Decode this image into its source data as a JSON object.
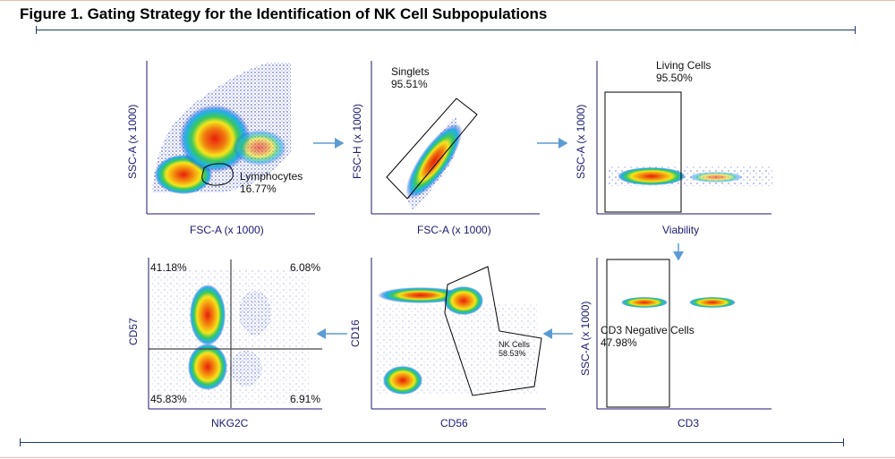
{
  "title": "Figure 1. Gating Strategy for the Identification of NK Cell Subpopulations",
  "panels": {
    "p1": {
      "xlabel": "FSC-A (x 1000)",
      "ylabel": "SSC-A (x 1000)",
      "gate_name": "Lymphocytes",
      "gate_pct": "16.77%"
    },
    "p2": {
      "xlabel": "FSC-A (x 1000)",
      "ylabel": "FSC-H (x 1000)",
      "gate_name": "Singlets",
      "gate_pct": "95.51%"
    },
    "p3": {
      "xlabel": "Viability",
      "ylabel": "SSC-A (x 1000)",
      "gate_name": "Living Cells",
      "gate_pct": "95.50%"
    },
    "p4": {
      "xlabel": "CD3",
      "ylabel": "SSC-A (x 1000)",
      "gate_name": "CD3 Negative Cells",
      "gate_pct": "47.98%"
    },
    "p5": {
      "xlabel": "CD56",
      "ylabel": "CD16",
      "gate_name": "NK Cells",
      "gate_pct": "58.53%"
    },
    "p6": {
      "xlabel": "NKG2C",
      "ylabel": "CD57",
      "q_ul": "41.18%",
      "q_ur": "6.08%",
      "q_ll": "45.83%",
      "q_lr": "6.91%"
    }
  },
  "colors": {
    "rule": "#1a3a6e",
    "arrow": "#5b9bd5",
    "density_high": "#e81e0a",
    "density_mid": "#f5e51b",
    "density_low": "#1e2fc8"
  }
}
